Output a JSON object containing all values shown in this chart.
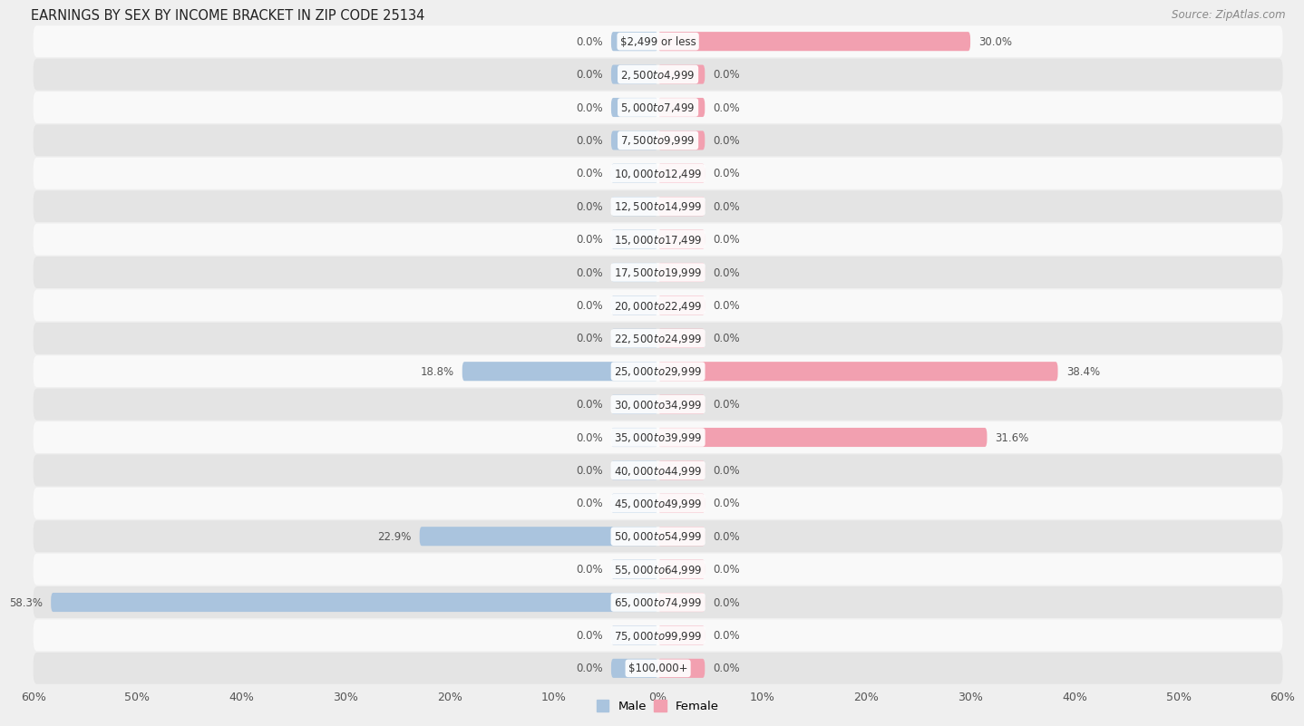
{
  "title": "EARNINGS BY SEX BY INCOME BRACKET IN ZIP CODE 25134",
  "source": "Source: ZipAtlas.com",
  "categories": [
    "$2,499 or less",
    "$2,500 to $4,999",
    "$5,000 to $7,499",
    "$7,500 to $9,999",
    "$10,000 to $12,499",
    "$12,500 to $14,999",
    "$15,000 to $17,499",
    "$17,500 to $19,999",
    "$20,000 to $22,499",
    "$22,500 to $24,999",
    "$25,000 to $29,999",
    "$30,000 to $34,999",
    "$35,000 to $39,999",
    "$40,000 to $44,999",
    "$45,000 to $49,999",
    "$50,000 to $54,999",
    "$55,000 to $64,999",
    "$65,000 to $74,999",
    "$75,000 to $99,999",
    "$100,000+"
  ],
  "male": [
    0.0,
    0.0,
    0.0,
    0.0,
    0.0,
    0.0,
    0.0,
    0.0,
    0.0,
    0.0,
    18.8,
    0.0,
    0.0,
    0.0,
    0.0,
    22.9,
    0.0,
    58.3,
    0.0,
    0.0
  ],
  "female": [
    30.0,
    0.0,
    0.0,
    0.0,
    0.0,
    0.0,
    0.0,
    0.0,
    0.0,
    0.0,
    38.4,
    0.0,
    31.6,
    0.0,
    0.0,
    0.0,
    0.0,
    0.0,
    0.0,
    0.0
  ],
  "male_color": "#aac4de",
  "female_color": "#f2a0b0",
  "bar_height": 0.58,
  "stub_size": 4.5,
  "xlim": 60.0,
  "bg_color": "#efefef",
  "row_color_light": "#f9f9f9",
  "row_color_dark": "#e4e4e4",
  "title_fontsize": 10.5,
  "source_fontsize": 8.5,
  "tick_fontsize": 9,
  "label_fontsize": 8.5,
  "category_fontsize": 8.5
}
